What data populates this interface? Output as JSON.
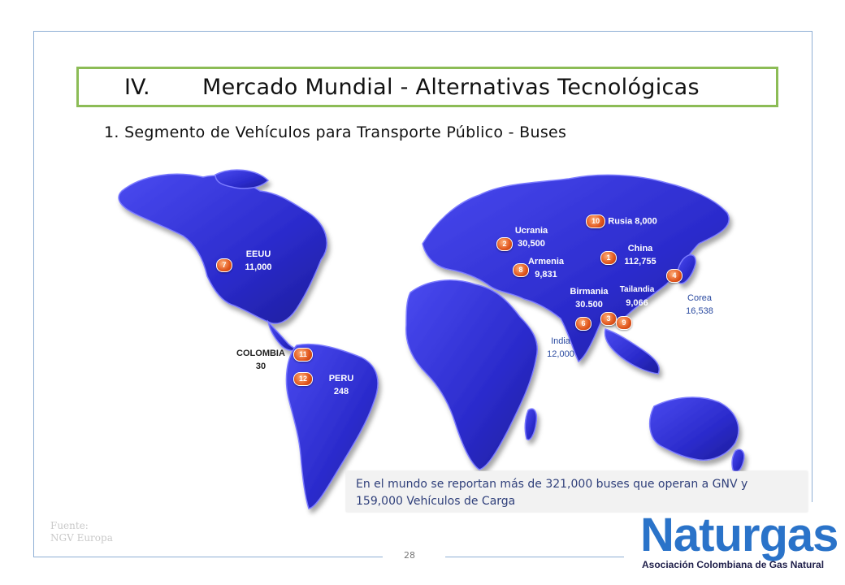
{
  "title": {
    "number": "IV.",
    "text": "Mercado Mundial - Alternativas Tecnológicas"
  },
  "subtitle": "1. Segmento de Vehículos para Transporte Público - Buses",
  "countries": [
    {
      "badge": "1",
      "name": "China",
      "value": "112,755"
    },
    {
      "badge": "2",
      "name": "Ucrania",
      "value": "30,500"
    },
    {
      "badge": "3",
      "name": "",
      "value": ""
    },
    {
      "badge": "4",
      "name": "",
      "value": ""
    },
    {
      "badge": "6",
      "name": "",
      "value": ""
    },
    {
      "badge": "7",
      "name": "EEUU",
      "value": "11,000"
    },
    {
      "badge": "8",
      "name": "Armenia",
      "value": "9,831"
    },
    {
      "badge": "9",
      "name": "",
      "value": ""
    },
    {
      "badge": "10",
      "name": "Rusia 8,000",
      "value": ""
    },
    {
      "badge": "11",
      "name": "COLOMBIA",
      "value": "30"
    },
    {
      "badge": "12",
      "name": "PERU",
      "value": "248"
    }
  ],
  "extra_labels": {
    "birmania_name": "Birmania",
    "birmania_value": "30.500",
    "tailandia_name": "Tailandia",
    "tailandia_value": "9,066",
    "corea_name": "Corea",
    "corea_value": "16,538",
    "india_name": "India",
    "india_value": "12,000"
  },
  "note": "En el mundo se reportan más de 321,000 buses que operan a GNV y 159,000 Vehículos de Carga",
  "source": {
    "line1": "Fuente:",
    "line2": "NGV Europa"
  },
  "page_number": "28",
  "logo": {
    "word": "Naturgas",
    "tagline": "Asociación Colombiana de Gas Natural"
  },
  "colors": {
    "map": "#2f2fd0",
    "title_border": "#8cbc56",
    "badge": "#e0561d",
    "logo": "#2a73c9"
  }
}
